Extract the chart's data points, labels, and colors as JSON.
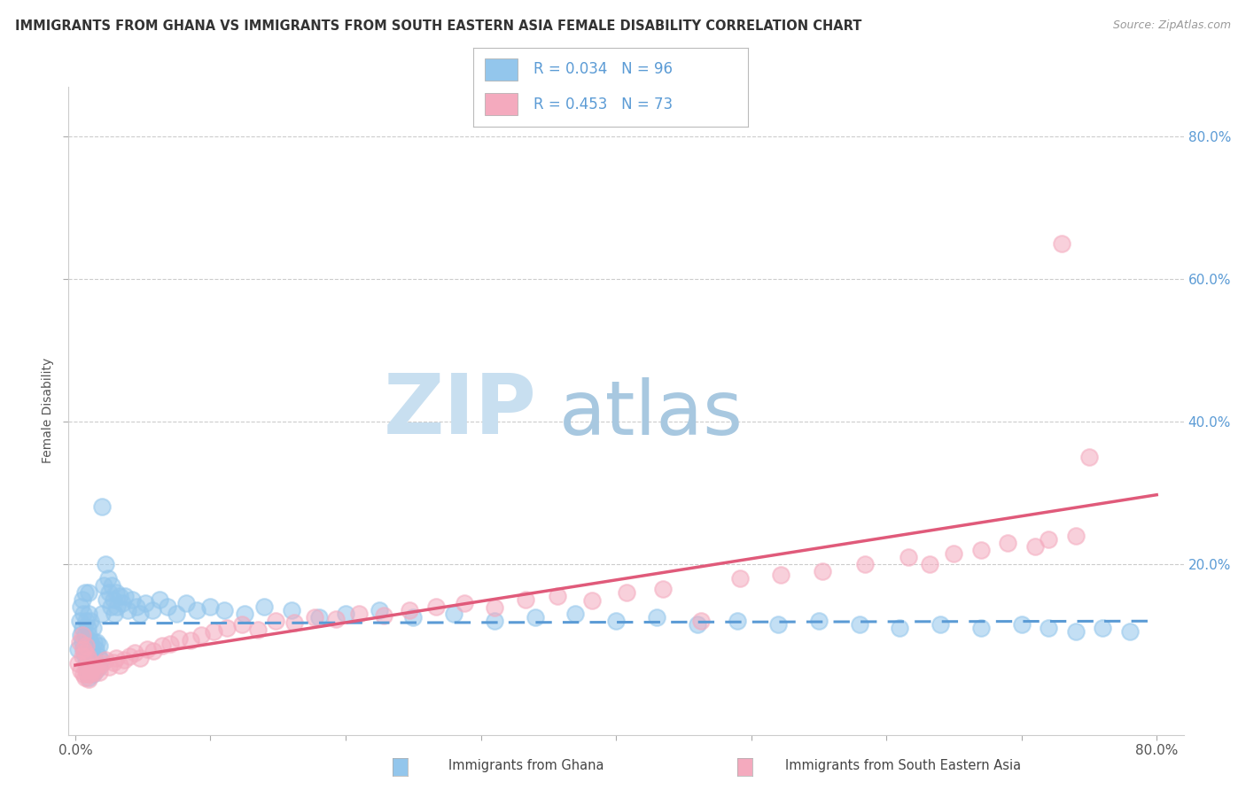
{
  "title": "IMMIGRANTS FROM GHANA VS IMMIGRANTS FROM SOUTH EASTERN ASIA FEMALE DISABILITY CORRELATION CHART",
  "source": "Source: ZipAtlas.com",
  "ylabel": "Female Disability",
  "x_lim": [
    -0.005,
    0.82
  ],
  "y_lim": [
    -0.04,
    0.87
  ],
  "ghana_R": 0.034,
  "ghana_N": 96,
  "sea_R": 0.453,
  "sea_N": 73,
  "ghana_color": "#93C6EC",
  "sea_color": "#F4AABE",
  "ghana_line_color": "#5B9BD5",
  "sea_line_color": "#E05A7A",
  "watermark_zip": "ZIP",
  "watermark_atlas": "atlas",
  "legend_labels": [
    "Immigrants from Ghana",
    "Immigrants from South Eastern Asia"
  ],
  "background_color": "#FFFFFF",
  "grid_color": "#CCCCCC",
  "ghana_x": [
    0.002,
    0.003,
    0.004,
    0.004,
    0.005,
    0.005,
    0.005,
    0.006,
    0.006,
    0.007,
    0.007,
    0.007,
    0.008,
    0.008,
    0.008,
    0.009,
    0.009,
    0.009,
    0.01,
    0.01,
    0.01,
    0.01,
    0.01,
    0.011,
    0.011,
    0.011,
    0.012,
    0.012,
    0.013,
    0.013,
    0.013,
    0.014,
    0.014,
    0.015,
    0.015,
    0.016,
    0.016,
    0.017,
    0.018,
    0.018,
    0.019,
    0.02,
    0.02,
    0.021,
    0.022,
    0.023,
    0.024,
    0.025,
    0.026,
    0.027,
    0.028,
    0.029,
    0.03,
    0.031,
    0.033,
    0.035,
    0.037,
    0.039,
    0.042,
    0.045,
    0.048,
    0.052,
    0.057,
    0.062,
    0.068,
    0.075,
    0.082,
    0.09,
    0.1,
    0.11,
    0.125,
    0.14,
    0.16,
    0.18,
    0.2,
    0.225,
    0.25,
    0.28,
    0.31,
    0.34,
    0.37,
    0.4,
    0.43,
    0.46,
    0.49,
    0.52,
    0.55,
    0.58,
    0.61,
    0.64,
    0.67,
    0.7,
    0.72,
    0.74,
    0.76,
    0.78
  ],
  "ghana_y": [
    0.08,
    0.12,
    0.1,
    0.14,
    0.09,
    0.11,
    0.15,
    0.08,
    0.13,
    0.07,
    0.1,
    0.16,
    0.06,
    0.09,
    0.12,
    0.05,
    0.08,
    0.11,
    0.04,
    0.07,
    0.1,
    0.13,
    0.16,
    0.06,
    0.09,
    0.12,
    0.05,
    0.08,
    0.045,
    0.07,
    0.11,
    0.06,
    0.09,
    0.05,
    0.08,
    0.06,
    0.09,
    0.07,
    0.055,
    0.085,
    0.065,
    0.28,
    0.13,
    0.17,
    0.2,
    0.15,
    0.18,
    0.16,
    0.14,
    0.17,
    0.15,
    0.13,
    0.16,
    0.14,
    0.155,
    0.145,
    0.155,
    0.135,
    0.15,
    0.14,
    0.13,
    0.145,
    0.135,
    0.15,
    0.14,
    0.13,
    0.145,
    0.135,
    0.14,
    0.135,
    0.13,
    0.14,
    0.135,
    0.125,
    0.13,
    0.135,
    0.125,
    0.13,
    0.12,
    0.125,
    0.13,
    0.12,
    0.125,
    0.115,
    0.12,
    0.115,
    0.12,
    0.115,
    0.11,
    0.115,
    0.11,
    0.115,
    0.11,
    0.105,
    0.11,
    0.105
  ],
  "sea_x": [
    0.002,
    0.003,
    0.004,
    0.005,
    0.005,
    0.006,
    0.006,
    0.007,
    0.007,
    0.008,
    0.008,
    0.009,
    0.009,
    0.01,
    0.01,
    0.011,
    0.012,
    0.013,
    0.014,
    0.015,
    0.016,
    0.018,
    0.02,
    0.022,
    0.025,
    0.028,
    0.03,
    0.033,
    0.036,
    0.04,
    0.044,
    0.048,
    0.053,
    0.058,
    0.064,
    0.07,
    0.077,
    0.085,
    0.093,
    0.102,
    0.112,
    0.123,
    0.135,
    0.148,
    0.162,
    0.177,
    0.193,
    0.21,
    0.228,
    0.247,
    0.267,
    0.288,
    0.31,
    0.333,
    0.357,
    0.382,
    0.408,
    0.435,
    0.463,
    0.492,
    0.522,
    0.553,
    0.584,
    0.616,
    0.632,
    0.65,
    0.67,
    0.69,
    0.71,
    0.72,
    0.73,
    0.74,
    0.75
  ],
  "sea_y": [
    0.06,
    0.09,
    0.05,
    0.07,
    0.1,
    0.045,
    0.08,
    0.04,
    0.075,
    0.05,
    0.085,
    0.045,
    0.07,
    0.038,
    0.065,
    0.045,
    0.05,
    0.055,
    0.048,
    0.052,
    0.058,
    0.048,
    0.06,
    0.065,
    0.055,
    0.062,
    0.068,
    0.058,
    0.065,
    0.07,
    0.075,
    0.068,
    0.08,
    0.078,
    0.085,
    0.088,
    0.095,
    0.092,
    0.1,
    0.105,
    0.11,
    0.115,
    0.108,
    0.12,
    0.118,
    0.125,
    0.122,
    0.13,
    0.128,
    0.135,
    0.14,
    0.145,
    0.138,
    0.15,
    0.155,
    0.148,
    0.16,
    0.165,
    0.12,
    0.18,
    0.185,
    0.19,
    0.2,
    0.21,
    0.2,
    0.215,
    0.22,
    0.23,
    0.225,
    0.235,
    0.65,
    0.24,
    0.35
  ]
}
